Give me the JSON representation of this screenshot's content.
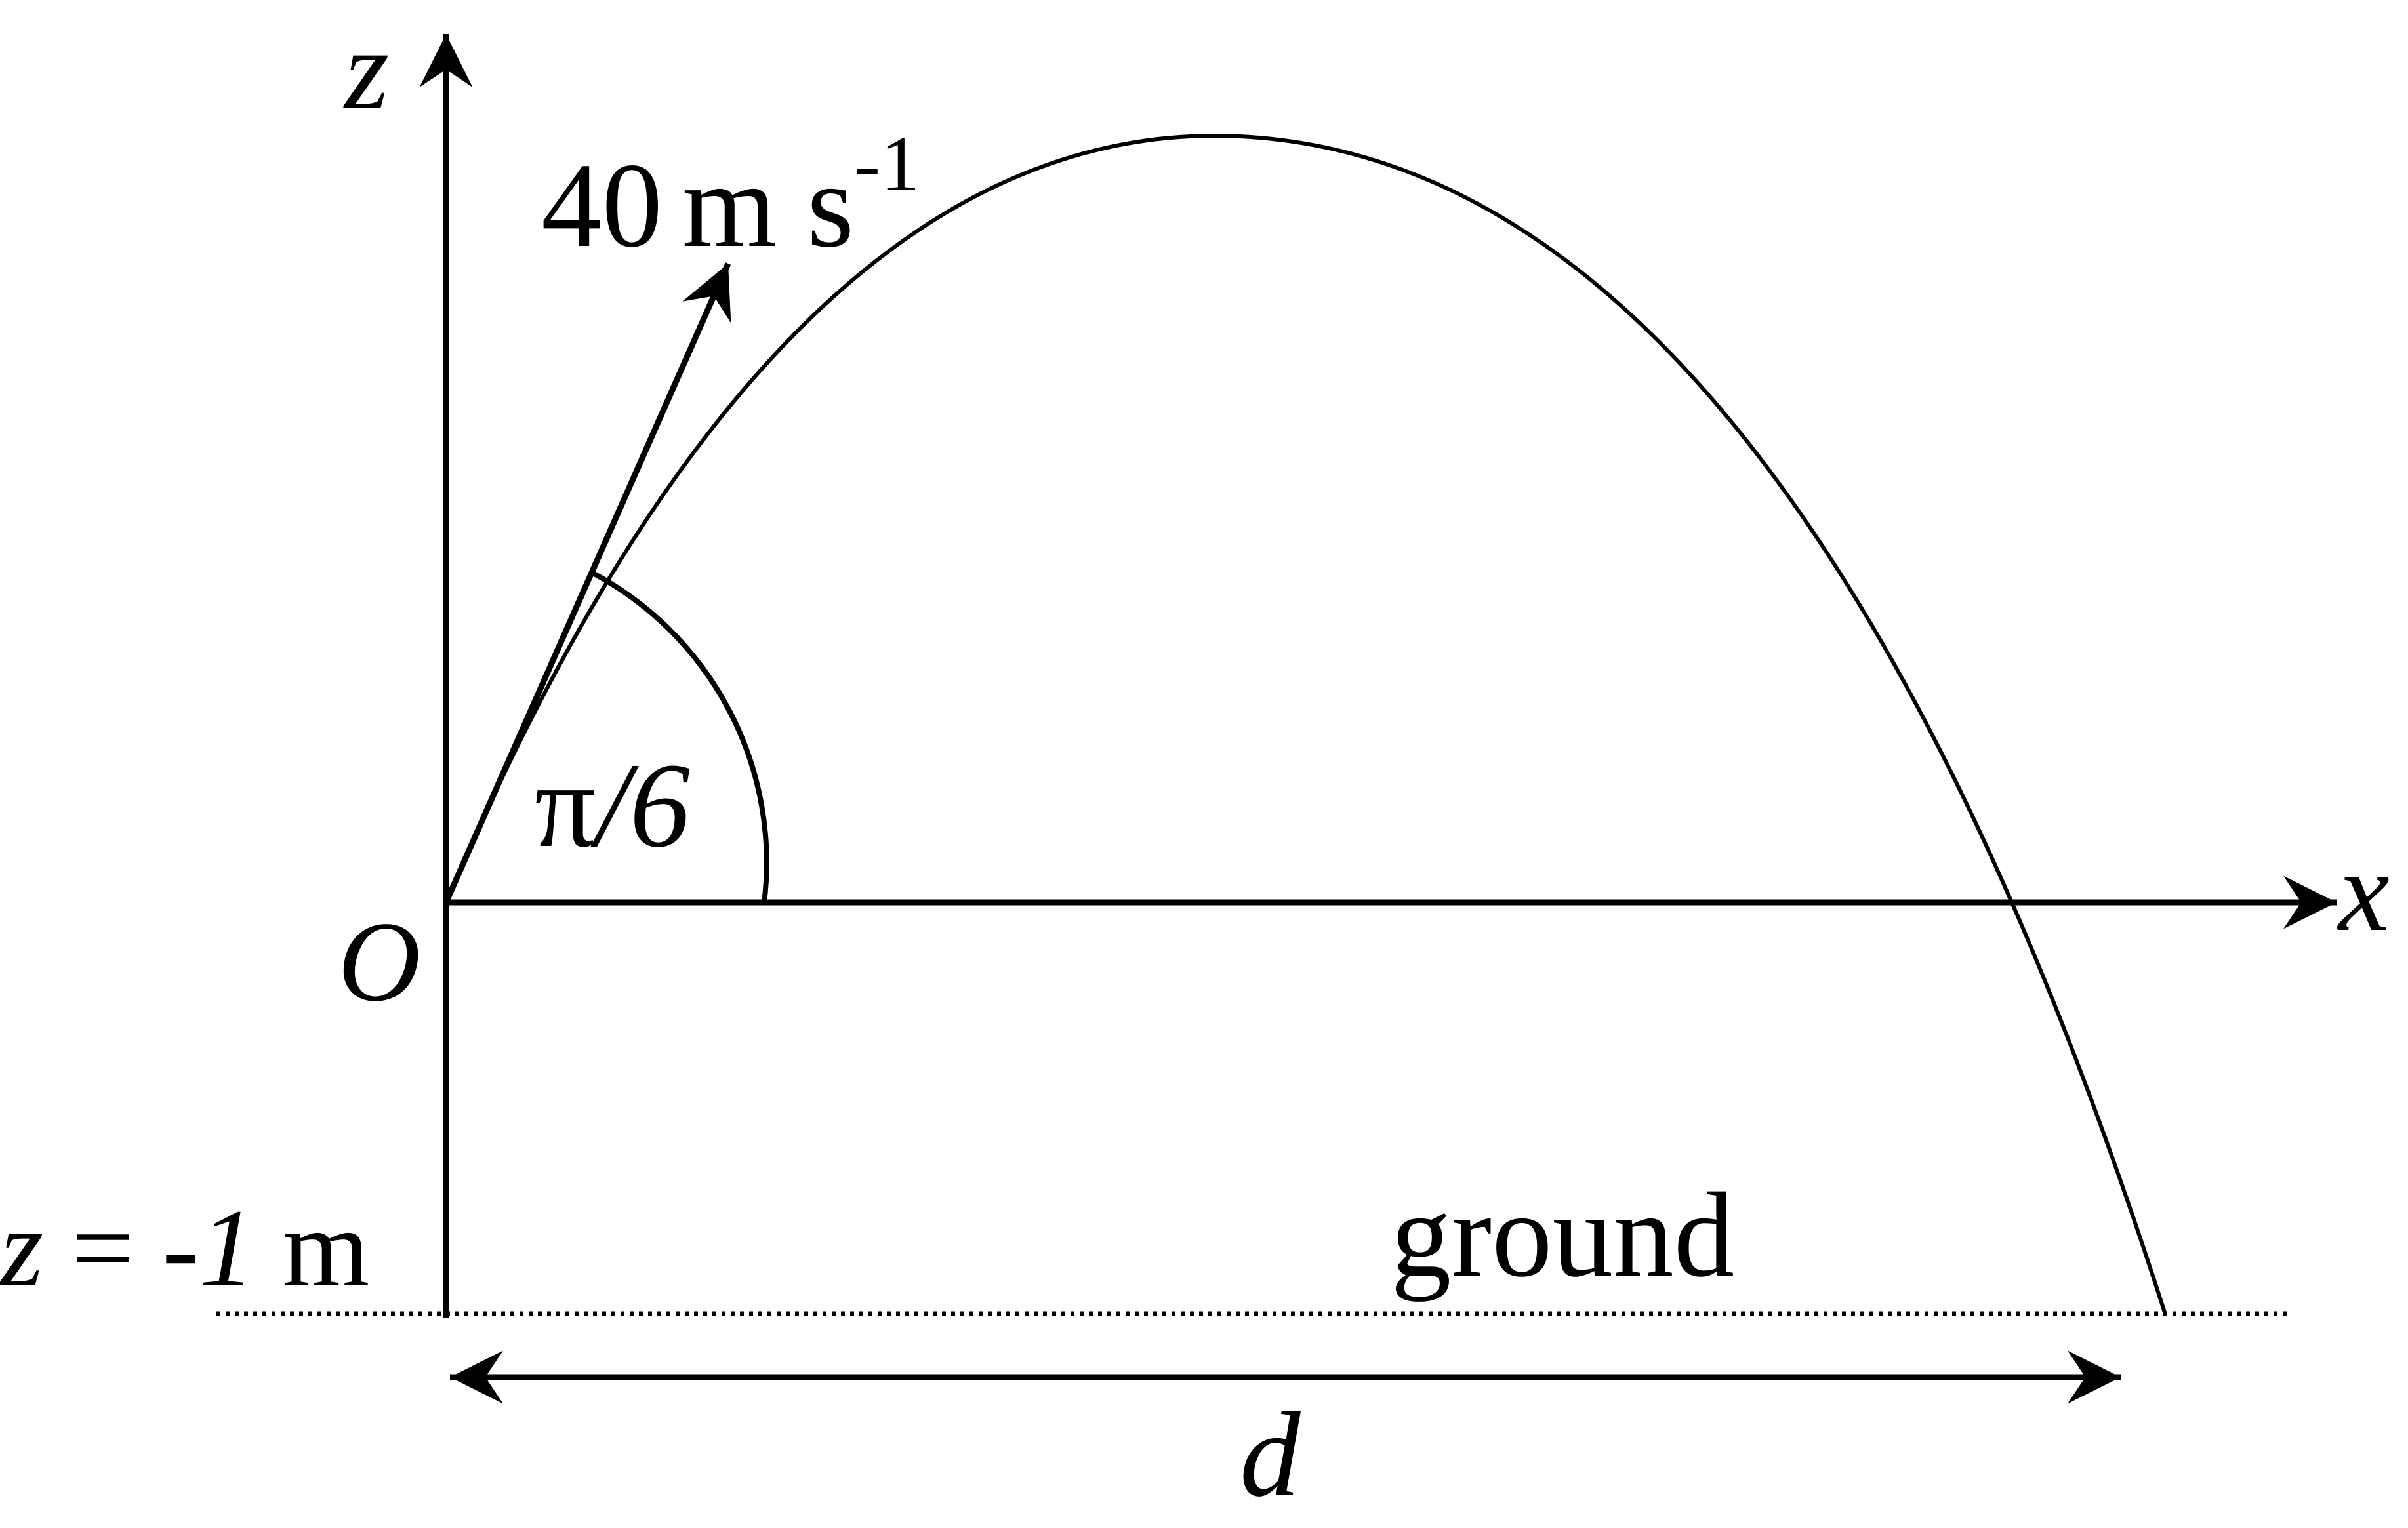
{
  "diagram": {
    "axes": {
      "z_label": "z",
      "x_label": "x",
      "origin_label": "O"
    },
    "velocity": {
      "value": "40",
      "unit": "m s",
      "exponent": "-1"
    },
    "angle": {
      "symbol": "π",
      "rest": "/6"
    },
    "ground": {
      "level_z": "z",
      "level_eq": " = ",
      "level_value": "-1",
      "level_unit": " m",
      "label": "ground"
    },
    "distance": {
      "label": "d"
    },
    "colors": {
      "ink": "#000000",
      "background": "#ffffff"
    }
  }
}
